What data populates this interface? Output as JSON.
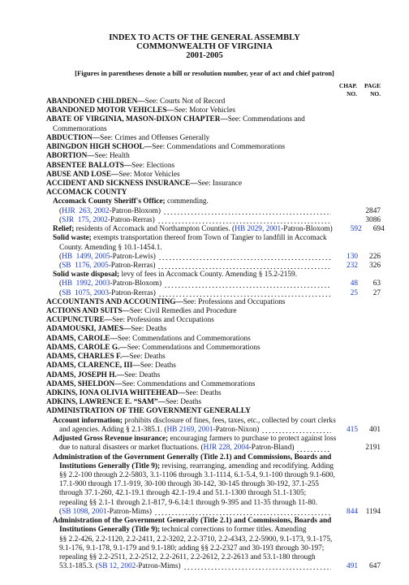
{
  "header": {
    "title_lines": [
      "INDEX TO ACTS OF THE GENERAL ASSEMBLY",
      "COMMONWEALTH OF VIRGINIA",
      "2001-2005"
    ],
    "note": "[Figures in parentheses denote a bill or resolution number, year of act and chief patron]",
    "col_chap": [
      "CHAP.",
      "NO."
    ],
    "col_page": [
      "PAGE",
      "NO."
    ]
  },
  "lines": [
    {
      "level": 0,
      "runs": [
        {
          "t": "ABANDONED CHILDREN—",
          "s": "bold"
        },
        {
          "t": "See: Courts Not of Record"
        }
      ]
    },
    {
      "level": 0,
      "runs": [
        {
          "t": "ABANDONED MOTOR VEHICLES—",
          "s": "bold"
        },
        {
          "t": "See: Motor Vehicles"
        }
      ]
    },
    {
      "level": 0,
      "runs": [
        {
          "t": "ABATE OF VIRGINIA, MASON-DIXON CHAPTER—",
          "s": "bold"
        },
        {
          "t": "See: Commendations and"
        }
      ]
    },
    {
      "level": 1,
      "runs": [
        {
          "t": "Commemorations"
        }
      ]
    },
    {
      "level": 0,
      "runs": [
        {
          "t": "ABDUCTION—",
          "s": "bold"
        },
        {
          "t": "See: Crimes and Offenses Generally"
        }
      ]
    },
    {
      "level": 0,
      "runs": [
        {
          "t": "ABINGDON HIGH SCHOOL—",
          "s": "bold"
        },
        {
          "t": "See: Commendations and Commemorations"
        }
      ]
    },
    {
      "level": 0,
      "runs": [
        {
          "t": "ABORTION—",
          "s": "bold"
        },
        {
          "t": "See: Health"
        }
      ]
    },
    {
      "level": 0,
      "runs": [
        {
          "t": "ABSENTEE BALLOTS—",
          "s": "bold"
        },
        {
          "t": "See: Elections"
        }
      ]
    },
    {
      "level": 0,
      "runs": [
        {
          "t": "ABUSE AND LOSE—",
          "s": "bold"
        },
        {
          "t": "See: Motor Vehicles"
        }
      ]
    },
    {
      "level": 0,
      "runs": [
        {
          "t": "ACCIDENT AND SICKNESS INSURANCE—",
          "s": "bold"
        },
        {
          "t": "See: Insurance"
        }
      ]
    },
    {
      "level": 0,
      "runs": [
        {
          "t": "ACCOMACK COUNTY",
          "s": "bold"
        }
      ]
    },
    {
      "level": 1,
      "runs": [
        {
          "t": "Accomack County Sheriff's Office;",
          "s": "bold"
        },
        {
          "t": " commending."
        }
      ]
    },
    {
      "level": 2,
      "runs": [
        {
          "t": "("
        },
        {
          "t": "HJR  263, 2002",
          "s": "link"
        },
        {
          "t": "-Patron-Bloxom)"
        }
      ],
      "page": 2847
    },
    {
      "level": 2,
      "runs": [
        {
          "t": "("
        },
        {
          "t": "SJR  175, 2002",
          "s": "link"
        },
        {
          "t": "-Patron-Rerras)"
        }
      ],
      "page": 3086
    },
    {
      "level": 1,
      "runs": [
        {
          "t": "Relief;",
          "s": "bold"
        },
        {
          "t": " residents of Accomack and Northampton Counties. ("
        },
        {
          "t": "HB 2029, 2001",
          "s": "link"
        },
        {
          "t": "-Patron-Bloxom)"
        }
      ],
      "chap": 592,
      "page": 694
    },
    {
      "level": 1,
      "runs": [
        {
          "t": "Solid waste;",
          "s": "bold"
        },
        {
          "t": " exempts transportation thereof from Town of Tangier to landfill in Accomack"
        }
      ]
    },
    {
      "level": 2,
      "runs": [
        {
          "t": "County. Amending § 10.1-1454.1."
        }
      ]
    },
    {
      "level": 2,
      "runs": [
        {
          "t": "("
        },
        {
          "t": "HB  1499, 2005",
          "s": "link"
        },
        {
          "t": "-Patron-Lewis)"
        }
      ],
      "chap": 130,
      "page": 226
    },
    {
      "level": 2,
      "runs": [
        {
          "t": "("
        },
        {
          "t": "SB  1176, 2005",
          "s": "link"
        },
        {
          "t": "-Patron-Rerras)"
        }
      ],
      "chap": 232,
      "page": 326
    },
    {
      "level": 1,
      "runs": [
        {
          "t": "Solid waste disposal;",
          "s": "bold"
        },
        {
          "t": " levy of fees in Accomack County. Amending § 15.2-2159."
        }
      ]
    },
    {
      "level": 2,
      "runs": [
        {
          "t": "("
        },
        {
          "t": "HB  1992, 2003",
          "s": "link"
        },
        {
          "t": "-Patron-Bloxom)"
        }
      ],
      "chap": 48,
      "page": 63
    },
    {
      "level": 2,
      "runs": [
        {
          "t": "("
        },
        {
          "t": "SB  1075, 2003",
          "s": "link"
        },
        {
          "t": "-Patron-Rerras)"
        }
      ],
      "chap": 25,
      "page": 27
    },
    {
      "level": 0,
      "runs": [
        {
          "t": "ACCOUNTANTS AND ACCOUNTING—",
          "s": "bold"
        },
        {
          "t": "See: Professions and Occupations"
        }
      ]
    },
    {
      "level": 0,
      "runs": [
        {
          "t": "ACTIONS AND SUITS—",
          "s": "bold"
        },
        {
          "t": "See: Civil Remedies and Procedure"
        }
      ]
    },
    {
      "level": 0,
      "runs": [
        {
          "t": "ACUPUNCTURE—",
          "s": "bold"
        },
        {
          "t": "See: Professions and Occupations"
        }
      ]
    },
    {
      "level": 0,
      "runs": [
        {
          "t": "ADAMOUSKI, JAMES—",
          "s": "bold"
        },
        {
          "t": "See: Deaths"
        }
      ]
    },
    {
      "level": 0,
      "runs": [
        {
          "t": "ADAMS, CAROLE—",
          "s": "bold"
        },
        {
          "t": "See: Commendations and Commemorations"
        }
      ]
    },
    {
      "level": 0,
      "runs": [
        {
          "t": "ADAMS, CAROLE G.—",
          "s": "bold"
        },
        {
          "t": "See: Commendations and Commemorations"
        }
      ]
    },
    {
      "level": 0,
      "runs": [
        {
          "t": "ADAMS, CHARLES F.—",
          "s": "bold"
        },
        {
          "t": "See: Deaths"
        }
      ]
    },
    {
      "level": 0,
      "runs": [
        {
          "t": "ADAMS, CLARENCE, III—",
          "s": "bold"
        },
        {
          "t": "See: Deaths"
        }
      ]
    },
    {
      "level": 0,
      "runs": [
        {
          "t": "ADAMS, JOSEPH H.—",
          "s": "bold"
        },
        {
          "t": "See: Deaths"
        }
      ]
    },
    {
      "level": 0,
      "runs": [
        {
          "t": "ADAMS, SHELDON—",
          "s": "bold"
        },
        {
          "t": "See: Commendations and Commemorations"
        }
      ]
    },
    {
      "level": 0,
      "runs": [
        {
          "t": "ADKINS, IONA OLIVIA WHITEHEAD—",
          "s": "bold"
        },
        {
          "t": "See: Deaths"
        }
      ]
    },
    {
      "level": 0,
      "runs": [
        {
          "t": "ADKINS, LAWRENCE E. “SAM”—",
          "s": "bold"
        },
        {
          "t": "See: Deaths"
        }
      ]
    },
    {
      "level": 0,
      "runs": [
        {
          "t": "ADMINISTRATION OF THE GOVERNMENT GENERALLY",
          "s": "bold"
        }
      ]
    },
    {
      "level": 1,
      "runs": [
        {
          "t": "Account information;",
          "s": "bold"
        },
        {
          "t": " prohibits disclosure of fines, fees, taxes, etc., collected by court clerks"
        }
      ]
    },
    {
      "level": 2,
      "runs": [
        {
          "t": "and agencies. Adding § 2.1-385.1. ("
        },
        {
          "t": "HB 2169, 2001",
          "s": "link"
        },
        {
          "t": "-Patron-Nixon)"
        }
      ],
      "chap": 415,
      "page": 401
    },
    {
      "level": 1,
      "runs": [
        {
          "t": "Adjusted Gross Revenue insurance;",
          "s": "bold"
        },
        {
          "t": " encouraging farmers to purchase to protect against loss"
        }
      ]
    },
    {
      "level": 2,
      "runs": [
        {
          "t": "due to natural disasters or market fluctuations. ("
        },
        {
          "t": "HJR 228, 2004",
          "s": "link"
        },
        {
          "t": "-Patron-Bland)"
        }
      ],
      "page": 2191
    },
    {
      "level": 1,
      "runs": [
        {
          "t": "Administration of the Government Generally (Title 2.1) and Commissions, Boards and",
          "s": "bold"
        }
      ]
    },
    {
      "level": 2,
      "runs": [
        {
          "t": "Institutions Generally (Title 9);",
          "s": "bold"
        },
        {
          "t": " revising, rearranging, amending and recodifying. Adding"
        }
      ]
    },
    {
      "level": 2,
      "runs": [
        {
          "t": "§§ 2.2-100 through 2.2-5803, 3.1-1106 through 3.1-1114, 6.1-5.4, 9.1-100 through 9.1-600,"
        }
      ]
    },
    {
      "level": 2,
      "runs": [
        {
          "t": "17.1-900 through 17.1-919, 30-100 through 30-142, 30-145 through 30-192, 37.1-255"
        }
      ]
    },
    {
      "level": 2,
      "runs": [
        {
          "t": "through 37.1-260, 42.1-19.1 through 42.1-19.4 and 51.1-1300 through 51.1-1305;"
        }
      ]
    },
    {
      "level": 2,
      "runs": [
        {
          "t": "repealing §§ 2.1-1 through 2.1-817, 9-6.14:1 through 9-395 and 11-35 through 11-80."
        }
      ]
    },
    {
      "level": 2,
      "runs": [
        {
          "t": "("
        },
        {
          "t": "SB 1098, 2001",
          "s": "link"
        },
        {
          "t": "-Patron-Mims)"
        }
      ],
      "chap": 844,
      "page": 1194
    },
    {
      "level": 1,
      "runs": [
        {
          "t": "Administration of the Government Generally (Title 2.1) and Commissions, Boards and",
          "s": "bold"
        }
      ]
    },
    {
      "level": 2,
      "runs": [
        {
          "t": "Institutions Generally (Title 9);",
          "s": "bold"
        },
        {
          "t": " technical corrections to former titles. Amending"
        }
      ]
    },
    {
      "level": 2,
      "runs": [
        {
          "t": "§§ 2.2-426, 2.2-1120, 2.2-2411, 2.2-3202, 2.2-3710, 2.2-4343, 2.2-5900, 9.1-173, 9.1-175,"
        }
      ]
    },
    {
      "level": 2,
      "runs": [
        {
          "t": "9.1-176, 9.1-178, 9.1-179 and 9.1-180; adding §§ 2.2-2327 and 30-193 through 30-197;"
        }
      ]
    },
    {
      "level": 2,
      "runs": [
        {
          "t": "repealing §§ 2.2-2511, 2.2-2512, 2.2-2611, 2.2-2612, 2.2-2613 and 53.1-180 through"
        }
      ]
    },
    {
      "level": 2,
      "runs": [
        {
          "t": "53.1-185.3. ("
        },
        {
          "t": "SB 12, 2002",
          "s": "link"
        },
        {
          "t": "-Patron-Mims)"
        }
      ],
      "chap": 491,
      "page": 647
    }
  ]
}
